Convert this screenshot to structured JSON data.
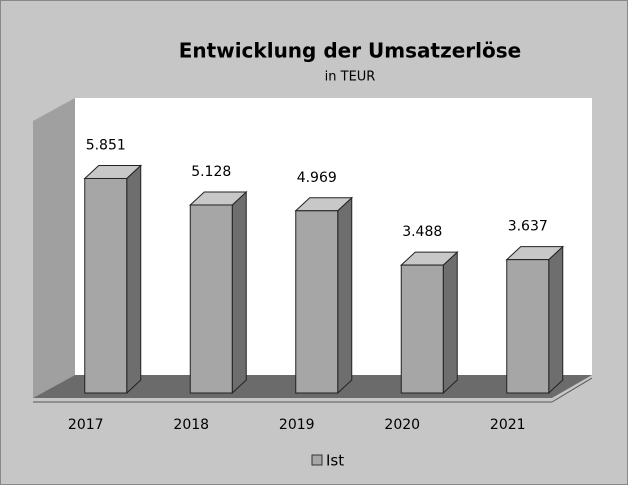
{
  "chart_data": {
    "type": "bar3d",
    "title": "Entwicklung der Umsatzerlöse",
    "subtitle": "in TEUR",
    "categories": [
      "2017",
      "2018",
      "2019",
      "2020",
      "2021"
    ],
    "series": [
      {
        "name": "Ist",
        "color": "#a6a6a6",
        "values": [
          5851,
          5128,
          4969,
          3488,
          3637
        ],
        "value_labels": [
          "5.851",
          "5.128",
          "4.969",
          "3.488",
          "3.637"
        ]
      }
    ],
    "ylim": [
      0,
      7500
    ]
  }
}
